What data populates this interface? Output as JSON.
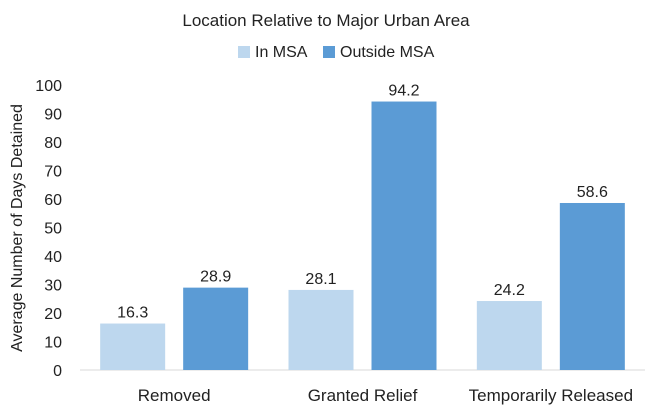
{
  "chart_data": {
    "type": "bar",
    "title": "Location Relative to Major Urban Area",
    "xlabel": "",
    "ylabel": "Average Number of Days Detained",
    "ylim": [
      0,
      100
    ],
    "yticks": [
      0,
      10,
      20,
      30,
      40,
      50,
      60,
      70,
      80,
      90,
      100
    ],
    "categories": [
      "Removed",
      "Granted Relief",
      "Temporarily Released"
    ],
    "series": [
      {
        "name": "In MSA",
        "values": [
          16.3,
          28.1,
          24.2
        ],
        "labels": [
          "16.3",
          "28.1",
          "24.2"
        ],
        "color": "#bdd7ee"
      },
      {
        "name": "Outside MSA",
        "values": [
          28.9,
          94.2,
          58.6
        ],
        "labels": [
          "28.9",
          "94.2",
          "58.6"
        ],
        "color": "#5b9bd5"
      }
    ],
    "legend_position": "top-center",
    "grid": false,
    "axis_color": "#d9d9d9"
  }
}
